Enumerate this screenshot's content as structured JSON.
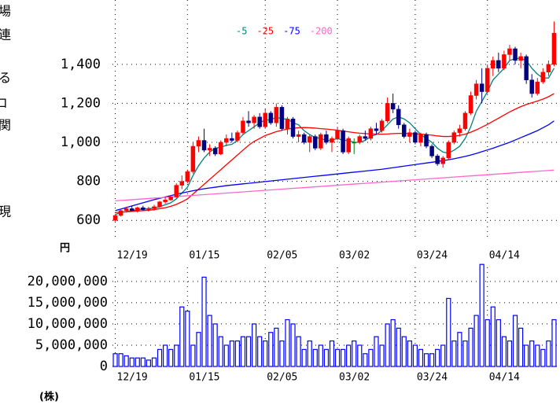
{
  "side_labels": [
    "場",
    "連",
    "る",
    "コ",
    "関",
    "現"
  ],
  "chart_data": [
    {
      "type": "candlestick",
      "y_unit": "円",
      "categories": [
        "12/19",
        null,
        null,
        null,
        null,
        null,
        null,
        null,
        null,
        null,
        null,
        null,
        null,
        "01/15",
        null,
        null,
        null,
        null,
        null,
        null,
        null,
        null,
        null,
        null,
        null,
        null,
        null,
        "02/05",
        null,
        null,
        null,
        null,
        null,
        null,
        null,
        null,
        null,
        null,
        null,
        null,
        "03/02",
        null,
        null,
        null,
        null,
        null,
        null,
        null,
        null,
        null,
        null,
        null,
        null,
        null,
        "03/24",
        null,
        null,
        null,
        null,
        null,
        null,
        null,
        null,
        null,
        null,
        null,
        null,
        "04/14",
        null,
        null,
        null,
        null,
        null,
        null,
        null,
        null,
        null,
        null,
        null,
        null
      ],
      "open": [
        600,
        625,
        650,
        660,
        650,
        665,
        655,
        660,
        670,
        695,
        705,
        720,
        780,
        800,
        850,
        980,
        1010,
        960,
        970,
        940,
        1000,
        1020,
        1010,
        1050,
        1110,
        1100,
        1130,
        1080,
        1150,
        1100,
        1180,
        1070,
        1120,
        1030,
        1040,
        1000,
        1030,
        970,
        1040,
        1000,
        1020,
        1060,
        950,
        1000,
        1000,
        1030,
        1020,
        1070,
        1060,
        1110,
        1200,
        1170,
        1090,
        1030,
        1050,
        1000,
        1040,
        980,
        930,
        890,
        920,
        1000,
        1050,
        1070,
        1150,
        1240,
        1300,
        1260,
        1380,
        1420,
        1380,
        1450,
        1480,
        1420,
        1440,
        1320,
        1250,
        1310,
        1360,
        1400
      ],
      "high": [
        630,
        660,
        670,
        675,
        670,
        675,
        670,
        680,
        700,
        720,
        730,
        790,
        830,
        860,
        1000,
        1030,
        1070,
        990,
        980,
        1010,
        1040,
        1050,
        1060,
        1130,
        1160,
        1140,
        1150,
        1170,
        1160,
        1200,
        1190,
        1130,
        1130,
        1060,
        1050,
        1040,
        1040,
        1050,
        1060,
        1030,
        1080,
        1070,
        1030,
        1020,
        1040,
        1060,
        1080,
        1100,
        1120,
        1230,
        1250,
        1190,
        1100,
        1070,
        1060,
        1050,
        1050,
        990,
        940,
        930,
        1010,
        1060,
        1090,
        1160,
        1260,
        1320,
        1380,
        1400,
        1440,
        1460,
        1470,
        1500,
        1490,
        1460,
        1450,
        1350,
        1330,
        1380,
        1420,
        1620
      ],
      "low": [
        595,
        620,
        640,
        645,
        640,
        650,
        645,
        650,
        665,
        685,
        700,
        715,
        760,
        790,
        840,
        950,
        950,
        930,
        930,
        935,
        980,
        1000,
        1000,
        1040,
        1080,
        1070,
        1070,
        1070,
        1090,
        1080,
        1060,
        1040,
        1020,
        1000,
        990,
        950,
        960,
        960,
        990,
        950,
        1010,
        940,
        940,
        940,
        990,
        1010,
        1010,
        1040,
        1050,
        1100,
        1150,
        1070,
        1020,
        1000,
        990,
        980,
        970,
        920,
        880,
        870,
        910,
        990,
        1030,
        1060,
        1140,
        1220,
        1200,
        1250,
        1340,
        1360,
        1370,
        1420,
        1400,
        1380,
        1300,
        1230,
        1240,
        1300,
        1340,
        1390
      ],
      "close": [
        625,
        650,
        660,
        650,
        665,
        655,
        660,
        670,
        695,
        705,
        720,
        780,
        800,
        850,
        980,
        1010,
        960,
        970,
        940,
        1000,
        1020,
        1010,
        1050,
        1110,
        1100,
        1130,
        1080,
        1150,
        1100,
        1180,
        1070,
        1120,
        1030,
        1040,
        1000,
        1030,
        970,
        1040,
        1000,
        1020,
        1060,
        950,
        1020,
        1000,
        1030,
        1020,
        1070,
        1060,
        1110,
        1200,
        1170,
        1090,
        1030,
        1050,
        1000,
        1040,
        980,
        930,
        890,
        920,
        1000,
        1050,
        1070,
        1150,
        1240,
        1300,
        1260,
        1380,
        1420,
        1380,
        1450,
        1480,
        1420,
        1440,
        1320,
        1250,
        1310,
        1360,
        1400,
        1560
      ],
      "up_color": "#ff0000",
      "down_color": "#000080",
      "flat_color": "#008000",
      "series": [
        {
          "name": "-5",
          "color": "#008080",
          "values": [
            630,
            640,
            645,
            650,
            655,
            658,
            660,
            662,
            670,
            680,
            690,
            710,
            740,
            770,
            830,
            880,
            920,
            950,
            970,
            975,
            985,
            990,
            1010,
            1040,
            1060,
            1080,
            1100,
            1115,
            1115,
            1130,
            1120,
            1120,
            1100,
            1090,
            1060,
            1040,
            1025,
            1020,
            1010,
            1010,
            1020,
            1010,
            1010,
            1000,
            1000,
            1010,
            1030,
            1040,
            1060,
            1090,
            1120,
            1130,
            1120,
            1100,
            1070,
            1040,
            1020,
            1000,
            970,
            950,
            945,
            960,
            980,
            1020,
            1080,
            1160,
            1210,
            1260,
            1320,
            1350,
            1380,
            1420,
            1430,
            1430,
            1420,
            1380,
            1350,
            1330,
            1330,
            1380
          ]
        },
        {
          "name": "-25",
          "color": "#ff0000",
          "values": [
            640,
            642,
            644,
            646,
            648,
            650,
            652,
            655,
            660,
            665,
            672,
            682,
            695,
            710,
            735,
            760,
            785,
            810,
            835,
            860,
            885,
            910,
            935,
            960,
            985,
            1005,
            1020,
            1035,
            1045,
            1055,
            1062,
            1068,
            1072,
            1075,
            1076,
            1075,
            1073,
            1070,
            1068,
            1065,
            1062,
            1058,
            1054,
            1050,
            1047,
            1045,
            1043,
            1042,
            1042,
            1043,
            1045,
            1046,
            1046,
            1045,
            1044,
            1042,
            1040,
            1037,
            1033,
            1030,
            1030,
            1032,
            1036,
            1042,
            1052,
            1064,
            1078,
            1092,
            1108,
            1124,
            1140,
            1156,
            1170,
            1183,
            1194,
            1203,
            1212,
            1222,
            1234,
            1250
          ]
        },
        {
          "name": "-75",
          "color": "#0000ff",
          "values": [
            650,
            658,
            666,
            674,
            682,
            690,
            698,
            706,
            713,
            720,
            727,
            734,
            740,
            746,
            752,
            757,
            762,
            766,
            770,
            774,
            778,
            781,
            784,
            787,
            790,
            793,
            796,
            799,
            802,
            805,
            808,
            811,
            814,
            817,
            820,
            823,
            826,
            829,
            832,
            835,
            838,
            841,
            844,
            847,
            850,
            853,
            856,
            859,
            862,
            866,
            870,
            874,
            878,
            882,
            886,
            890,
            894,
            898,
            902,
            906,
            911,
            916,
            922,
            928,
            935,
            943,
            952,
            961,
            970,
            980,
            990,
            1000,
            1012,
            1024,
            1036,
            1048,
            1060,
            1075,
            1090,
            1110
          ]
        },
        {
          "name": "-200",
          "color": "#ff66cc",
          "values": [
            700,
            702,
            704,
            706,
            708,
            710,
            712,
            714,
            716,
            718,
            720,
            722,
            724,
            726,
            728,
            730,
            732,
            734,
            736,
            738,
            740,
            742,
            744,
            746,
            748,
            750,
            752,
            754,
            756,
            758,
            760,
            762,
            764,
            766,
            768,
            770,
            772,
            774,
            776,
            778,
            780,
            782,
            784,
            786,
            788,
            790,
            792,
            794,
            796,
            798,
            800,
            802,
            804,
            806,
            808,
            810,
            812,
            814,
            816,
            818,
            820,
            822,
            824,
            826,
            828,
            830,
            832,
            834,
            836,
            838,
            840,
            842,
            844,
            846,
            848,
            850,
            852,
            854,
            856,
            858
          ]
        }
      ],
      "ylim": [
        500,
        1730
      ],
      "yticks": [
        600,
        800,
        {
          "value": 1000,
          "label": "1,000"
        },
        {
          "value": 1200,
          "label": "1,200"
        },
        {
          "value": 1400,
          "label": "1,400"
        }
      ],
      "grid": true,
      "legend": "top"
    },
    {
      "type": "bar",
      "y_unit": "(株)",
      "categories": [
        "12/19",
        null,
        null,
        null,
        null,
        null,
        null,
        null,
        null,
        null,
        null,
        null,
        null,
        "01/15",
        null,
        null,
        null,
        null,
        null,
        null,
        null,
        null,
        null,
        null,
        null,
        null,
        null,
        "02/05",
        null,
        null,
        null,
        null,
        null,
        null,
        null,
        null,
        null,
        null,
        null,
        null,
        "03/02",
        null,
        null,
        null,
        null,
        null,
        null,
        null,
        null,
        null,
        null,
        null,
        null,
        null,
        "03/24",
        null,
        null,
        null,
        null,
        null,
        null,
        null,
        null,
        null,
        null,
        null,
        null,
        "04/14",
        null,
        null,
        null,
        null,
        null,
        null,
        null,
        null,
        null,
        null,
        null,
        null
      ],
      "values": [
        3000000,
        3000000,
        2500000,
        2000000,
        2000000,
        2000000,
        1500000,
        2000000,
        4000000,
        5000000,
        4000000,
        5000000,
        14000000,
        13000000,
        5000000,
        8000000,
        21000000,
        12000000,
        10000000,
        7000000,
        5000000,
        6000000,
        6000000,
        7000000,
        7000000,
        10000000,
        7000000,
        6000000,
        8000000,
        9000000,
        6000000,
        11000000,
        10000000,
        7000000,
        4000000,
        6000000,
        4000000,
        5000000,
        4000000,
        6000000,
        4000000,
        4000000,
        5000000,
        6000000,
        5000000,
        3000000,
        4000000,
        7000000,
        5000000,
        10000000,
        11000000,
        9000000,
        7000000,
        6000000,
        5000000,
        4000000,
        3000000,
        3000000,
        4000000,
        5000000,
        16000000,
        6000000,
        8000000,
        6000000,
        9000000,
        12000000,
        24000000,
        11000000,
        14000000,
        11000000,
        7000000,
        6000000,
        12000000,
        9000000,
        5000000,
        6000000,
        5000000,
        4000000,
        6000000,
        11000000
      ],
      "color": "#0000ff",
      "ylim": [
        0,
        23300000
      ],
      "yticks": [
        0,
        {
          "value": 5000000,
          "label": "5,000,000"
        },
        {
          "value": 10000000,
          "label": "10,000,000"
        },
        {
          "value": 15000000,
          "label": "15,000,000"
        },
        {
          "value": 20000000,
          "label": "20,000,000"
        }
      ],
      "grid": true
    }
  ]
}
